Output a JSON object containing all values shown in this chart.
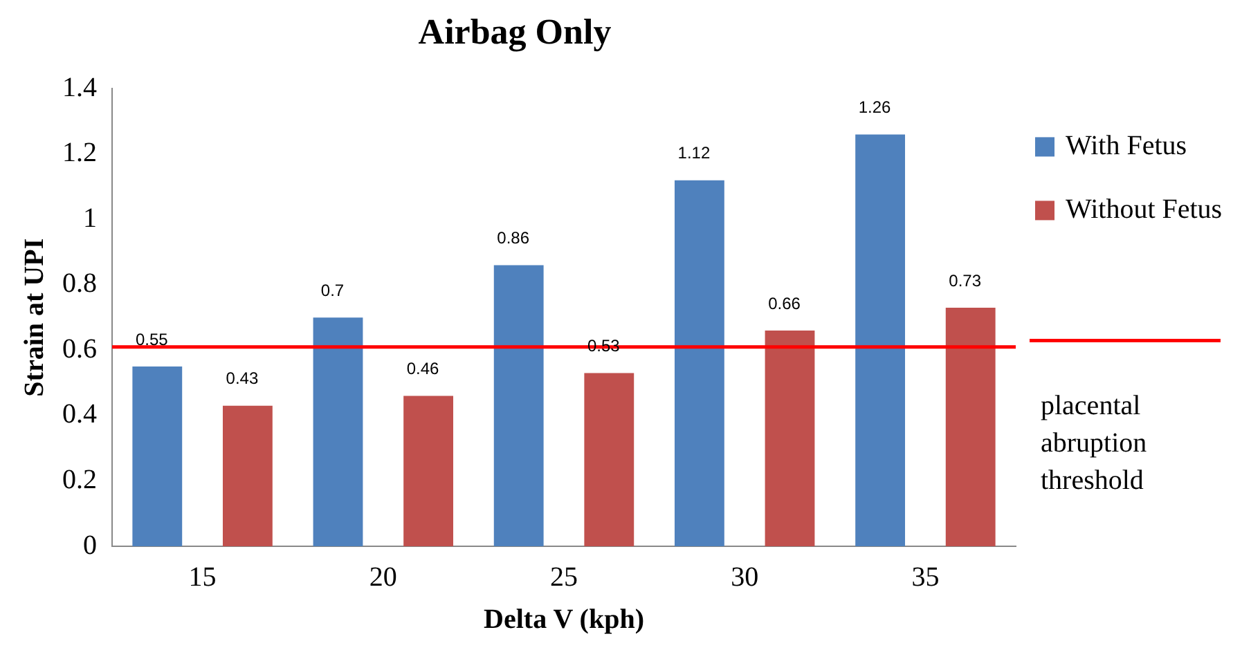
{
  "chart_data": {
    "type": "bar",
    "title": "Airbag Only",
    "xlabel": "Delta V (kph)",
    "ylabel": "Strain at UPI",
    "categories": [
      "15",
      "20",
      "25",
      "30",
      "35"
    ],
    "series": [
      {
        "name": "With Fetus",
        "color": "#4f81bd",
        "values": [
          0.55,
          0.7,
          0.86,
          1.12,
          1.26
        ]
      },
      {
        "name": "Without Fetus",
        "color": "#c0504d",
        "values": [
          0.43,
          0.46,
          0.53,
          0.66,
          0.73
        ]
      }
    ],
    "ylim": [
      0,
      1.4
    ],
    "yticks": [
      0,
      0.2,
      0.4,
      0.6,
      0.8,
      1,
      1.2,
      1.4
    ],
    "ref_lines": [
      {
        "axis": "y",
        "value": 0.61,
        "label": "placental abruption threshold",
        "color": "#ff0000"
      }
    ],
    "data_labels": true,
    "grid": false,
    "legend": "right"
  }
}
